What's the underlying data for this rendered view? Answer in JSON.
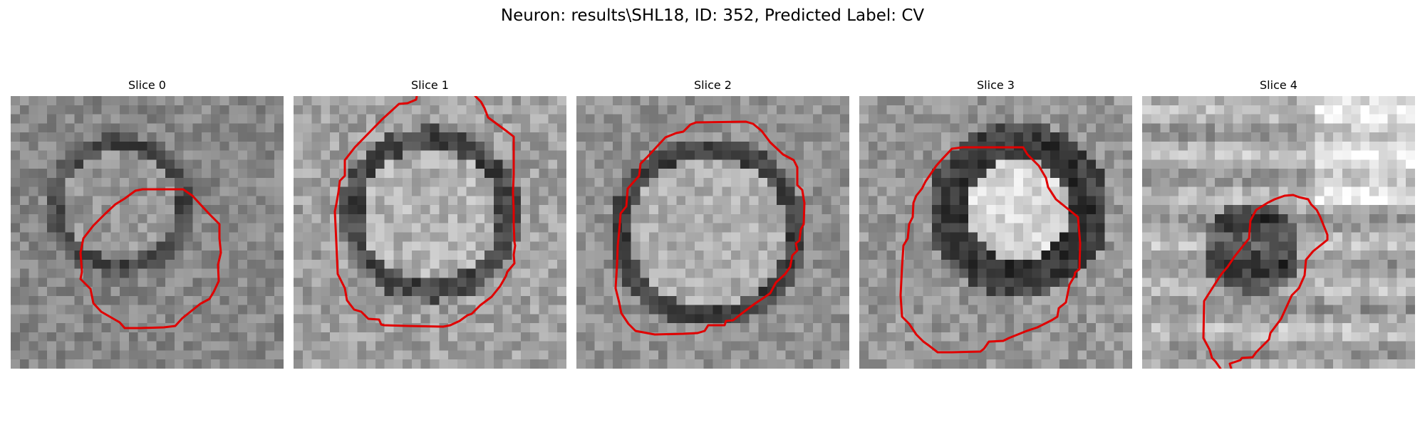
{
  "figure": {
    "suptitle": "Neuron: results\\SHL18, ID: 352, Predicted Label: CV",
    "contour_color": "#e00000",
    "colormap": "gray"
  },
  "slices": [
    {
      "title": "Slice 0"
    },
    {
      "title": "Slice 1"
    },
    {
      "title": "Slice 2"
    },
    {
      "title": "Slice 3"
    },
    {
      "title": "Slice 4"
    }
  ]
}
